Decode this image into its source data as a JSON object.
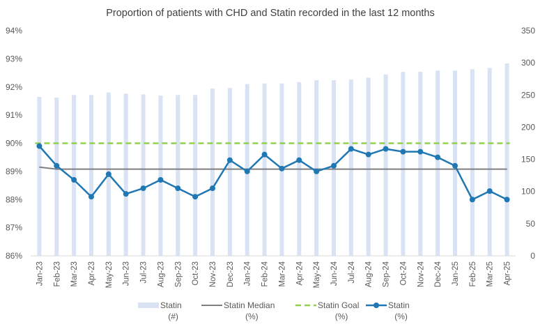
{
  "chart_data": {
    "type": "bar+line",
    "title": "Proportion of patients with CHD and Statin recorded in the last 12 months",
    "categories": [
      "Jan-23",
      "Feb-23",
      "Mar-23",
      "Apr-23",
      "May-23",
      "Jun-23",
      "Jul-23",
      "Aug-23",
      "Sep-23",
      "Oct-23",
      "Nov-23",
      "Dec-23",
      "Jan-24",
      "Feb-24",
      "Mar-24",
      "Apr-24",
      "May-24",
      "Jun-24",
      "Jul-24",
      "Aug-24",
      "Sep-24",
      "Oct-24",
      "Nov-24",
      "Dec-24",
      "Jan-25",
      "Feb-25",
      "Mar-25",
      "Apr-25"
    ],
    "y_left": {
      "ticks": [
        "86%",
        "87%",
        "88%",
        "89%",
        "90%",
        "91%",
        "92%",
        "93%",
        "94%"
      ],
      "ylim": [
        86,
        94
      ],
      "unit": "%"
    },
    "y_right": {
      "ticks": [
        "0",
        "50",
        "100",
        "150",
        "200",
        "250",
        "300",
        "350"
      ],
      "ylim": [
        0,
        350
      ]
    },
    "series": [
      {
        "name": "Statin (#)",
        "type": "bar",
        "axis": "right",
        "color": "#dae3f3",
        "values": [
          247,
          246,
          250,
          250,
          254,
          252,
          251,
          249,
          250,
          250,
          260,
          261,
          267,
          268,
          268,
          270,
          273,
          273,
          274,
          277,
          282,
          286,
          286,
          288,
          288,
          290,
          292,
          299
        ]
      },
      {
        "name": "Statin Median (%)",
        "type": "line",
        "axis": "left",
        "color": "#7f7f7f",
        "values": [
          89.15,
          89.08,
          89.08,
          89.08,
          89.08,
          89.08,
          89.08,
          89.08,
          89.08,
          89.08,
          89.08,
          89.08,
          89.08,
          89.08,
          89.08,
          89.08,
          89.08,
          89.08,
          89.08,
          89.08,
          89.08,
          89.08,
          89.08,
          89.08,
          89.08,
          89.08,
          89.08,
          89.08
        ]
      },
      {
        "name": "Statin Goal (%)",
        "type": "line",
        "axis": "left",
        "color": "#92d050",
        "dashed": true,
        "values": [
          90,
          90,
          90,
          90,
          90,
          90,
          90,
          90,
          90,
          90,
          90,
          90,
          90,
          90,
          90,
          90,
          90,
          90,
          90,
          90,
          90,
          90,
          90,
          90,
          90,
          90,
          90,
          90
        ]
      },
      {
        "name": "Statin (%)",
        "type": "line",
        "axis": "left",
        "color": "#1f77b4",
        "markers": true,
        "values": [
          89.9,
          89.2,
          88.7,
          88.1,
          88.9,
          88.2,
          88.4,
          88.7,
          88.4,
          88.1,
          88.4,
          89.4,
          89.0,
          89.6,
          89.1,
          89.4,
          89.0,
          89.2,
          89.8,
          89.6,
          89.8,
          89.7,
          89.7,
          89.5,
          89.2,
          88.0,
          88.3,
          88.0
        ]
      }
    ],
    "legend": {
      "position": "bottom",
      "items": [
        {
          "line1": "Statin",
          "line2": "(#)",
          "kind": "bar",
          "color": "#dae3f3"
        },
        {
          "line1": "Statin Median",
          "line2": "(%)",
          "kind": "line",
          "color": "#7f7f7f"
        },
        {
          "line1": "Statin Goal",
          "line2": "(%)",
          "kind": "dashed",
          "color": "#92d050"
        },
        {
          "line1": "Statin",
          "line2": "(%)",
          "kind": "marker-line",
          "color": "#1f77b4"
        }
      ]
    },
    "grid": false
  }
}
